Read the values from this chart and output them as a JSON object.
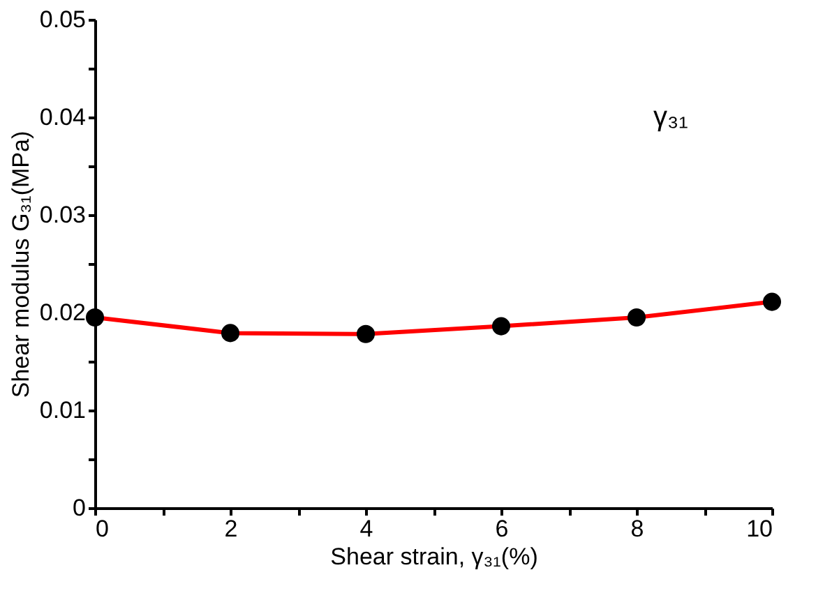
{
  "chart_data": {
    "type": "line",
    "xlabel": "Shear strain, γ₃₁(%)",
    "ylabel": "Shear modulus G₃₁(MPa)",
    "x": [
      0,
      2,
      4,
      6,
      8,
      10
    ],
    "series": [
      {
        "color": "#ff0000",
        "values": [
          0.0195,
          0.0179,
          0.0178,
          0.0186,
          0.0195,
          0.0211
        ]
      }
    ],
    "marker": "circle",
    "line_style": "solid",
    "grid": false,
    "xlim": [
      0,
      10
    ],
    "ylim": [
      0,
      0.05
    ],
    "xticks": [
      0,
      {
        "value": 1,
        "label": null
      },
      2,
      {
        "value": 3,
        "label": null
      },
      4,
      {
        "value": 5,
        "label": null
      },
      6,
      {
        "value": 7,
        "label": null
      },
      8,
      {
        "value": 9,
        "label": null
      },
      10
    ],
    "yticks": [
      0,
      {
        "value": 0.005,
        "label": null
      },
      0.01,
      {
        "value": 0.015,
        "label": null
      },
      0.02,
      {
        "value": 0.025,
        "label": null
      },
      0.03,
      {
        "value": 0.035,
        "label": null
      },
      0.04,
      {
        "value": 0.045,
        "label": null
      },
      0.05
    ],
    "annotations": [
      "γ₃₁"
    ]
  }
}
